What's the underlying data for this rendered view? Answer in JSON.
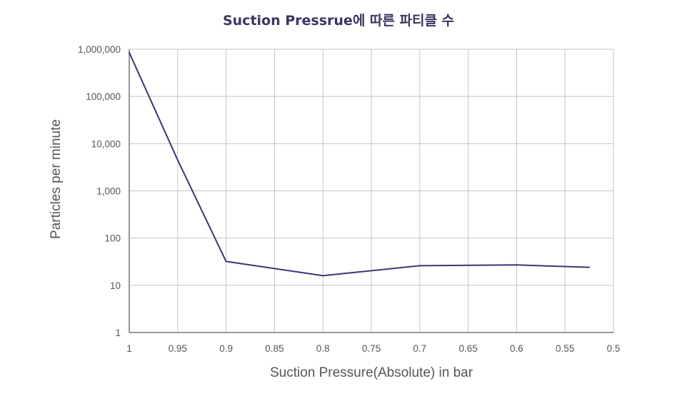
{
  "colors": {
    "title": "#3b3560",
    "text": "#555555",
    "grid": "#c4c4c4",
    "axis": "#777777",
    "series": "#3b3577"
  },
  "chart_data": {
    "type": "line",
    "title": "Suction Pressrue에 따른 파티클 수",
    "xlabel": "Suction Pressure(Absolute) in bar",
    "ylabel": "Particles per minute",
    "x_ticks": [
      1,
      0.95,
      0.9,
      0.85,
      0.8,
      0.75,
      0.7,
      0.65,
      0.6,
      0.55,
      0.5
    ],
    "x_tick_labels": [
      "1",
      "0.95",
      "0.9",
      "0.85",
      "0.8",
      "0.75",
      "0.7",
      "0.65",
      "0.6",
      "0.55",
      "0.5"
    ],
    "xlim": [
      1,
      0.5
    ],
    "x_reversed": true,
    "y_scale": "log",
    "ylim": [
      1,
      1000000
    ],
    "y_ticks": [
      1,
      10,
      100,
      1000,
      10000,
      100000,
      1000000
    ],
    "y_tick_labels": [
      "1",
      "10",
      "100",
      "1,000",
      "10,000",
      "100,000",
      "1,000,000"
    ],
    "grid": true,
    "series": [
      {
        "x": [
          1.0,
          0.95,
          0.9,
          0.8,
          0.7,
          0.6,
          0.525
        ],
        "y": [
          850000,
          4500,
          32,
          16,
          26,
          27,
          24
        ]
      }
    ]
  }
}
